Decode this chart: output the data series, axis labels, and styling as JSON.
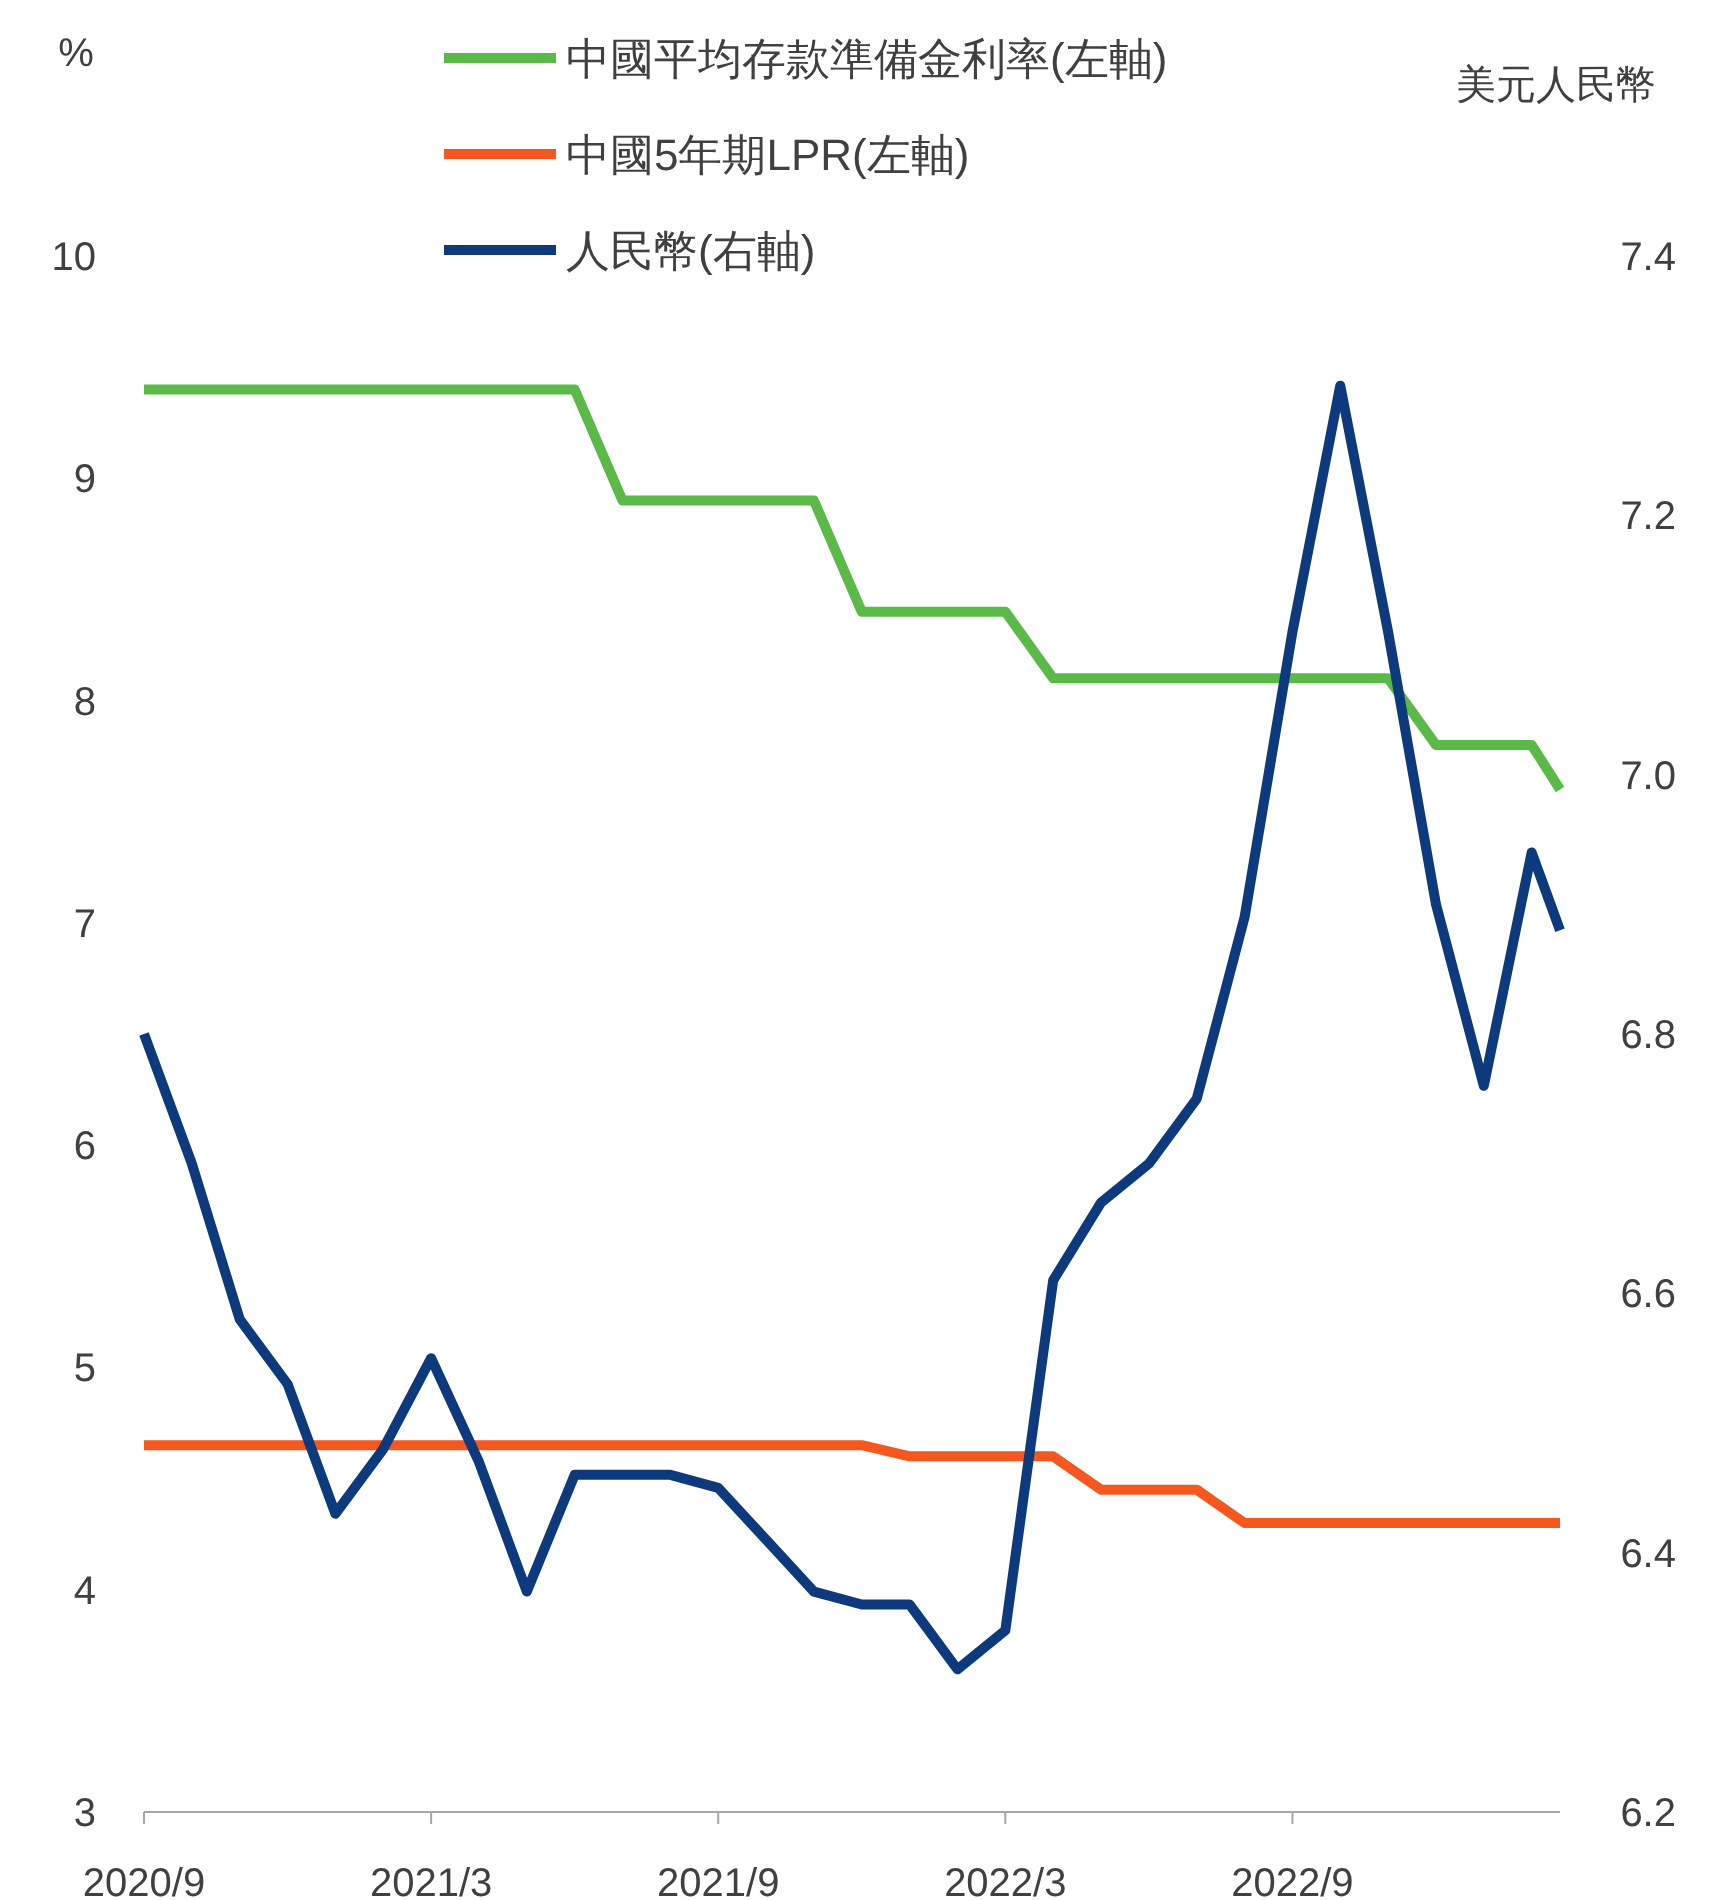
{
  "chart_data": {
    "type": "line",
    "ylabel": "%",
    "y2label": "美元人民幣",
    "x": [
      "2020-09",
      "2020-10",
      "2020-11",
      "2020-12",
      "2021-01",
      "2021-02",
      "2021-03",
      "2021-04",
      "2021-05",
      "2021-06",
      "2021-07",
      "2021-08",
      "2021-09",
      "2021-10",
      "2021-11",
      "2021-12",
      "2022-01",
      "2022-02",
      "2022-03",
      "2022-04",
      "2022-05",
      "2022-06",
      "2022-07",
      "2022-08",
      "2022-09",
      "2022-10",
      "2022-11",
      "2022-12",
      "2023-01",
      "2023-02",
      "2023-02-19"
    ],
    "series": [
      {
        "name": "中國平均存款準備金利率(左軸)",
        "color": "#5bb947",
        "values": [
          9.4,
          9.4,
          9.4,
          9.4,
          9.4,
          9.4,
          9.4,
          9.4,
          9.4,
          9.4,
          8.9,
          8.9,
          8.9,
          8.9,
          8.9,
          8.4,
          8.4,
          8.4,
          8.4,
          8.1,
          8.1,
          8.1,
          8.1,
          8.1,
          8.1,
          8.1,
          8.1,
          7.8,
          7.8,
          7.8,
          7.6
        ]
      },
      {
        "name": "中國5年期LPR(左軸)",
        "color": "#f4581f",
        "values": [
          4.65,
          4.65,
          4.65,
          4.65,
          4.65,
          4.65,
          4.65,
          4.65,
          4.65,
          4.65,
          4.65,
          4.65,
          4.65,
          4.65,
          4.65,
          4.65,
          4.6,
          4.6,
          4.6,
          4.6,
          4.45,
          4.45,
          4.45,
          4.3,
          4.3,
          4.3,
          4.3,
          4.3,
          4.3,
          4.3,
          4.3
        ]
      },
      {
        "name": "人民幣(右軸)",
        "color": "#0c3a7d",
        "axis": "y2",
        "values": [
          6.8,
          6.7,
          6.58,
          6.53,
          6.43,
          6.48,
          6.55,
          6.47,
          6.37,
          6.46,
          6.46,
          6.46,
          6.45,
          6.41,
          6.37,
          6.36,
          6.36,
          6.31,
          6.34,
          6.61,
          6.67,
          6.7,
          6.75,
          6.89,
          7.11,
          7.3,
          7.11,
          6.9,
          6.76,
          6.94,
          6.88
        ]
      }
    ],
    "xlim": [
      "2020-09",
      "2023-02-19"
    ],
    "xticks": [
      {
        "value": "2020-09",
        "label": "2020/9"
      },
      {
        "value": "2021-03",
        "label": "2021/3"
      },
      {
        "value": "2021-09",
        "label": "2021/9"
      },
      {
        "value": "2022-03",
        "label": "2022/3"
      },
      {
        "value": "2022-09",
        "label": "2022/9"
      }
    ],
    "ylim": [
      3,
      10
    ],
    "yticks": [
      3,
      4,
      5,
      6,
      7,
      8,
      9,
      10
    ],
    "y2lim": [
      6.2,
      7.4
    ],
    "y2ticks": [
      {
        "value": 6.2,
        "label": "6.2"
      },
      {
        "value": 6.4,
        "label": "6.4"
      },
      {
        "value": 6.6,
        "label": "6.6"
      },
      {
        "value": 6.8,
        "label": "6.8"
      },
      {
        "value": 7.0,
        "label": "7.0"
      },
      {
        "value": 7.2,
        "label": "7.2"
      },
      {
        "value": 7.4,
        "label": "7.4"
      }
    ],
    "grid": false,
    "legend": "top",
    "marker": "none",
    "line_style": "solid"
  }
}
